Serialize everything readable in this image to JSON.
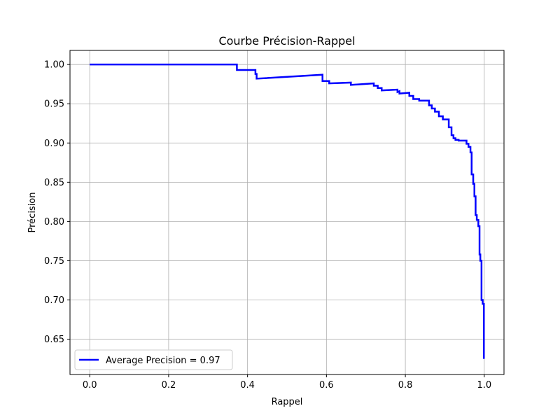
{
  "chart_data": {
    "type": "line",
    "title": "Courbe Précision-Rappel",
    "xlabel": "Rappel",
    "ylabel": "Précision",
    "xlim": [
      -0.05,
      1.05
    ],
    "ylim": [
      0.605,
      1.018
    ],
    "xticks": [
      0.0,
      0.2,
      0.4,
      0.6,
      0.8,
      1.0
    ],
    "xtick_labels": [
      "0.0",
      "0.2",
      "0.4",
      "0.6",
      "0.8",
      "1.0"
    ],
    "yticks": [
      0.65,
      0.7,
      0.75,
      0.8,
      0.85,
      0.9,
      0.95,
      1.0
    ],
    "ytick_labels": [
      "0.65",
      "0.70",
      "0.75",
      "0.80",
      "0.85",
      "0.90",
      "0.95",
      "1.00"
    ],
    "grid": true,
    "legend_position": "lower-left",
    "series": [
      {
        "name": "Average Precision = 0.97",
        "color": "#0000ff",
        "x": [
          0.0,
          0.373,
          0.373,
          0.42,
          0.42,
          0.423,
          0.423,
          0.59,
          0.59,
          0.607,
          0.607,
          0.662,
          0.662,
          0.72,
          0.72,
          0.73,
          0.73,
          0.74,
          0.74,
          0.78,
          0.78,
          0.785,
          0.785,
          0.81,
          0.81,
          0.82,
          0.82,
          0.835,
          0.835,
          0.86,
          0.86,
          0.867,
          0.867,
          0.875,
          0.875,
          0.885,
          0.885,
          0.895,
          0.895,
          0.91,
          0.91,
          0.917,
          0.917,
          0.922,
          0.922,
          0.927,
          0.927,
          0.935,
          0.935,
          0.955,
          0.955,
          0.96,
          0.96,
          0.965,
          0.965,
          0.968,
          0.968,
          0.972,
          0.972,
          0.975,
          0.975,
          0.978,
          0.978,
          0.981,
          0.981,
          0.985,
          0.985,
          0.988,
          0.988,
          0.99,
          0.99,
          0.993,
          0.993,
          0.996,
          0.996,
          0.999,
          0.999
        ],
        "y": [
          1.0,
          1.0,
          0.993,
          0.993,
          0.988,
          0.988,
          0.982,
          0.987,
          0.979,
          0.979,
          0.976,
          0.977,
          0.974,
          0.976,
          0.973,
          0.973,
          0.97,
          0.97,
          0.967,
          0.968,
          0.965,
          0.966,
          0.963,
          0.964,
          0.96,
          0.96,
          0.956,
          0.956,
          0.954,
          0.954,
          0.948,
          0.948,
          0.944,
          0.944,
          0.94,
          0.94,
          0.934,
          0.934,
          0.93,
          0.93,
          0.92,
          0.92,
          0.91,
          0.91,
          0.906,
          0.906,
          0.904,
          0.904,
          0.903,
          0.903,
          0.899,
          0.899,
          0.895,
          0.895,
          0.888,
          0.888,
          0.86,
          0.86,
          0.848,
          0.848,
          0.832,
          0.832,
          0.808,
          0.808,
          0.802,
          0.802,
          0.794,
          0.794,
          0.758,
          0.758,
          0.75,
          0.75,
          0.7,
          0.7,
          0.695,
          0.695,
          0.625
        ]
      }
    ]
  }
}
